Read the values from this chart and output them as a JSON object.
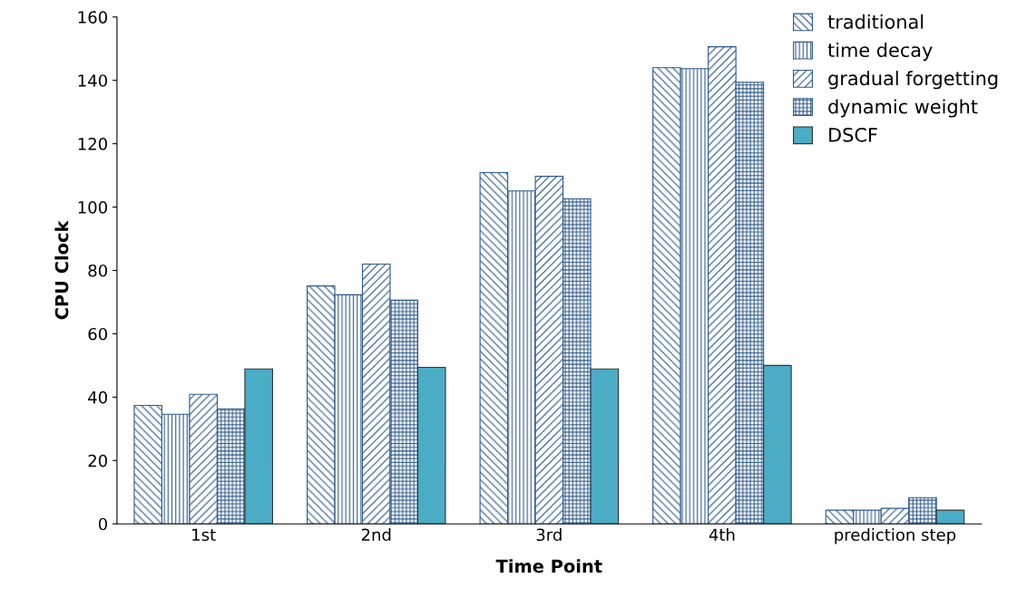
{
  "chart_data": {
    "type": "bar",
    "xlabel": "Time Point",
    "ylabel": "CPU Clock",
    "categories": [
      "1st",
      "2nd",
      "3rd",
      "4th",
      "prediction step"
    ],
    "series": [
      {
        "name": "traditional",
        "color": "#2e5a8a",
        "values": [
          37.4,
          75.1,
          110.9,
          144,
          4.3
        ]
      },
      {
        "name": "time decay",
        "color": "#2e5a8a",
        "values": [
          34.6,
          72.3,
          105.1,
          143.7,
          4.3
        ]
      },
      {
        "name": "gradual forgetting",
        "color": "#2e5a8a",
        "values": [
          40.9,
          82,
          109.7,
          150.6,
          4.9
        ]
      },
      {
        "name": "dynamic weight",
        "color": "#2e5a8a",
        "values": [
          36.3,
          70.6,
          102.6,
          139.4,
          8.3
        ]
      },
      {
        "name": "DSCF",
        "color": "#4bacc6",
        "values": [
          48.9,
          49.4,
          48.9,
          50,
          4.3
        ]
      }
    ],
    "ylim": [
      0,
      160
    ],
    "yticks": [
      0,
      20,
      40,
      60,
      80,
      100,
      120,
      140,
      160
    ],
    "grid": false,
    "legend": "top right"
  }
}
